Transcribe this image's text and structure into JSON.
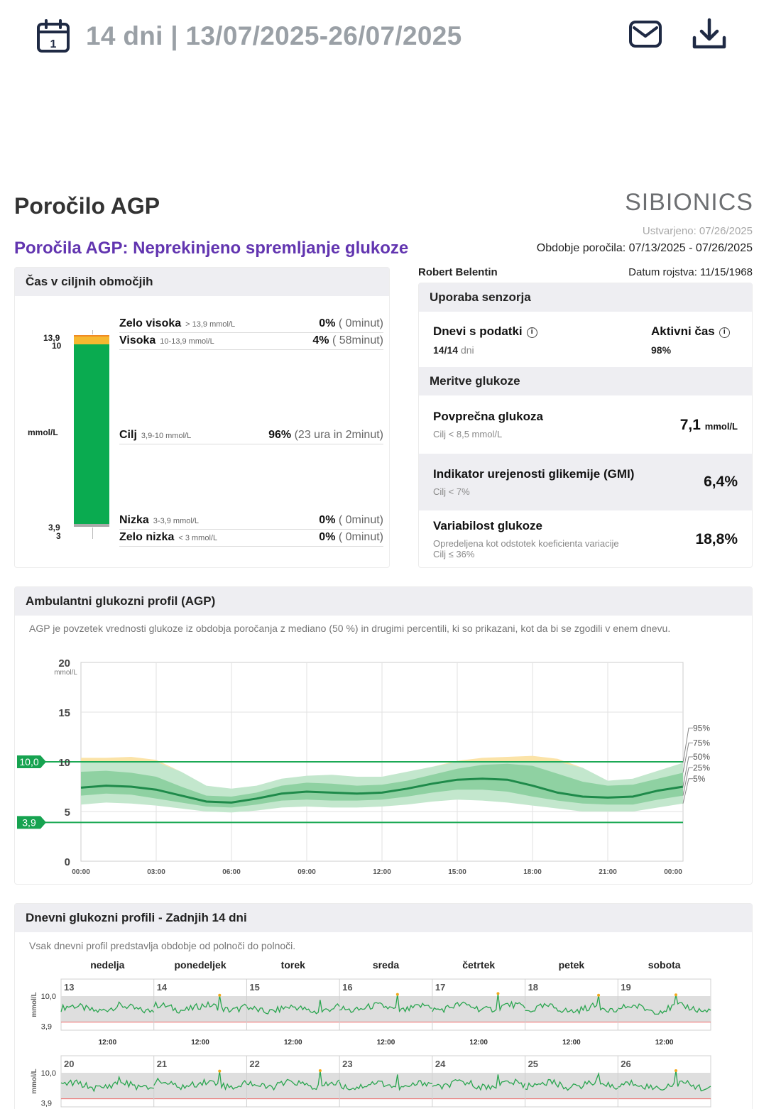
{
  "topbar": {
    "period_text": "14 dni | 13/07/2025-26/07/2025",
    "calendar_day": "1"
  },
  "report": {
    "title": "Poročilo AGP",
    "brand": "SIBIONICS",
    "created": "Ustvarjeno: 07/26/2025",
    "subtitle": "Poročila AGP: Neprekinjeno spremljanje glukoze",
    "period_label": "Obdobje poročila:",
    "period_value": "07/13/2025 - 07/26/2025",
    "patient": "Robert Belentin",
    "dob": "Datum rojstva: 11/15/1968"
  },
  "tir": {
    "title": "Čas v ciljnih območjih",
    "unit": "mmol/L",
    "axis": {
      "a": "13,9",
      "b": "10",
      "c": "3,9",
      "d": "3"
    },
    "colors": {
      "very_high": "#f08a24",
      "high": "#f6b830",
      "target": "#0aab50",
      "low": "#aaaaaa",
      "very_low": "#888888"
    },
    "rows": [
      {
        "name": "Zelo visoka",
        "range": "> 13,9 mmol/L",
        "pct": "0%",
        "time": " ( 0minut)",
        "fraction": 0.0
      },
      {
        "name": "Visoka",
        "range": "10-13,9 mmol/L",
        "pct": "4%",
        "time": " ( 58minut)",
        "fraction": 0.04
      },
      {
        "name": "Cilj",
        "range": "3,9-10 mmol/L",
        "pct": "96%",
        "time": " (23 ura in 2minut)",
        "fraction": 0.96
      },
      {
        "name": "Nizka",
        "range": "3-3,9 mmol/L",
        "pct": "0%",
        "time": " ( 0minut)",
        "fraction": 0.0
      },
      {
        "name": "Zelo nizka",
        "range": "< 3 mmol/L",
        "pct": "0%",
        "time": " ( 0minut)",
        "fraction": 0.0
      }
    ]
  },
  "sensor": {
    "title": "Uporaba senzorja",
    "days_label": "Dnevi s podatki",
    "days_value": "14/14",
    "days_unit": "dni",
    "active_label": "Aktivni čas",
    "active_value": "98%",
    "meas_title": "Meritve glukoze",
    "avg_label": "Povprečna glukoza",
    "avg_sub": "Cilj < 8,5 mmol/L",
    "avg_value": "7,1",
    "avg_unit": "mmol/L",
    "gmi_label": "Indikator urejenosti glikemije (GMI)",
    "gmi_sub": "Cilj < 7%",
    "gmi_value": "6,4%",
    "var_label": "Variabilost glukoze",
    "var_sub1": "Opredeljena kot odstotek koeficienta variacije",
    "var_sub2": "Cilj ≤ 36%",
    "var_value": "18,8%"
  },
  "agp": {
    "title": "Ambulantni glukozni profil (AGP)",
    "desc": "AGP je povzetek vrednosti glukoze iz obdobja poročanja z mediano (50 %) in drugimi percentili, ki so prikazani, kot da bi se zgodili v enem dnevu.",
    "unit": "mmol/L",
    "target_high_label": "10,0",
    "target_low_label": "3,9"
  },
  "chart_data": [
    {
      "type": "area",
      "title": "Ambulantni glukozni profil (AGP)",
      "ylabel": "mmol/L",
      "ylim": [
        0,
        20
      ],
      "yticks": [
        "0",
        "5",
        "10",
        "15",
        "20"
      ],
      "x_tick_labels": [
        "00:00",
        "03:00",
        "06:00",
        "09:00",
        "12:00",
        "15:00",
        "18:00",
        "21:00",
        "00:00"
      ],
      "target_range": [
        3.9,
        10.0
      ],
      "percentile_labels": [
        "95%",
        "75%",
        "50%",
        "25%",
        "5%"
      ],
      "percentile_label_values": [
        13.4,
        11.9,
        10.5,
        9.4,
        8.3
      ],
      "x_hours": [
        0,
        1,
        2,
        3,
        4,
        5,
        6,
        7,
        8,
        9,
        10,
        11,
        12,
        13,
        14,
        15,
        16,
        17,
        18,
        19,
        20,
        21,
        22,
        23,
        24
      ],
      "series": [
        {
          "name": "95%",
          "values": [
            10.4,
            10.4,
            10.5,
            10.2,
            9.0,
            7.6,
            7.3,
            7.6,
            8.3,
            8.6,
            8.7,
            8.5,
            8.5,
            9.0,
            9.5,
            10.1,
            10.4,
            10.5,
            10.6,
            10.3,
            9.4,
            8.1,
            8.3,
            9.1,
            9.9
          ]
        },
        {
          "name": "75%",
          "values": [
            9.0,
            9.1,
            8.9,
            8.5,
            7.5,
            6.6,
            6.5,
            6.9,
            7.6,
            7.9,
            7.8,
            7.6,
            7.7,
            8.1,
            8.7,
            9.3,
            9.7,
            9.8,
            9.6,
            8.8,
            8.0,
            7.6,
            7.7,
            8.3,
            8.9
          ]
        },
        {
          "name": "50%",
          "values": [
            7.4,
            7.6,
            7.5,
            7.2,
            6.6,
            6.0,
            5.9,
            6.3,
            6.8,
            7.0,
            6.9,
            6.8,
            6.9,
            7.3,
            7.8,
            8.2,
            8.3,
            8.2,
            7.6,
            6.9,
            6.5,
            6.4,
            6.5,
            7.1,
            7.5
          ]
        },
        {
          "name": "25%",
          "values": [
            6.6,
            6.8,
            6.7,
            6.3,
            5.9,
            5.5,
            5.4,
            5.7,
            6.1,
            6.2,
            6.1,
            6.1,
            6.2,
            6.5,
            6.9,
            7.2,
            7.2,
            7.0,
            6.5,
            6.1,
            5.8,
            5.7,
            5.7,
            6.2,
            6.6
          ]
        },
        {
          "name": "5%",
          "values": [
            5.7,
            5.9,
            5.8,
            5.6,
            5.3,
            5.0,
            4.9,
            5.1,
            5.4,
            5.5,
            5.4,
            5.4,
            5.5,
            5.7,
            6.0,
            6.2,
            6.1,
            5.9,
            5.6,
            5.3,
            5.0,
            5.0,
            5.0,
            5.4,
            5.8
          ]
        }
      ]
    },
    {
      "type": "line",
      "title": "Dnevni glukozni profili - Zadnjih 14 dni",
      "ylabel": "mmol/L",
      "ytick_labels": [
        "10,0",
        "3,9"
      ],
      "weekdays": [
        "nedelja",
        "ponedeljek",
        "torek",
        "sreda",
        "četrtek",
        "petek",
        "sobota"
      ],
      "week1_days": [
        "13",
        "14",
        "15",
        "16",
        "17",
        "18",
        "19"
      ],
      "week2_days": [
        "20",
        "21",
        "22",
        "23",
        "24",
        "25",
        "26"
      ],
      "x_tick_label": "12:00",
      "daily_mean": [
        7.1,
        7.3,
        6.9,
        7.2,
        7.4,
        7.0,
        7.1,
        7.0,
        7.3,
        7.2,
        7.1,
        7.2,
        7.2,
        7.0
      ],
      "daily_max": [
        8.6,
        10.2,
        9.1,
        10.4,
        10.6,
        10.2,
        10.3,
        9.0,
        10.4,
        10.5,
        9.6,
        9.6,
        9.8,
        10.5
      ]
    }
  ],
  "daily": {
    "title": "Dnevni glukozni profili - Zadnjih 14 dni",
    "desc": "Vsak dnevni profil predstavlja obdobje od polnoči do polnoči.",
    "unit": "mmol/L"
  }
}
